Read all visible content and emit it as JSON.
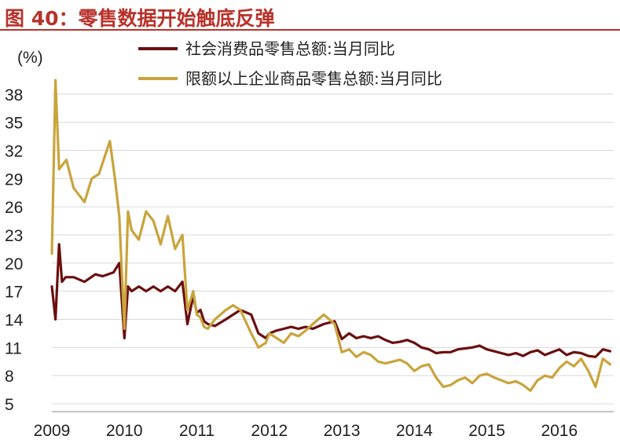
{
  "title": "图 40：零售数据开始触底反弹",
  "colors": {
    "title": "#b8322a",
    "series_retail": "#6b0f0f",
    "series_large": "#c9a43c",
    "grid": "#d8d8d8"
  },
  "chart_data": {
    "type": "line",
    "ylabel": "(%)",
    "ylim": [
      5,
      40
    ],
    "yticks": [
      5,
      8,
      11,
      14,
      17,
      20,
      23,
      26,
      29,
      32,
      35,
      38
    ],
    "xticks": [
      "2009",
      "2010",
      "2011",
      "2012",
      "2013",
      "2014",
      "2015",
      "2016"
    ],
    "xrange": [
      2009.0,
      2016.75
    ],
    "legend_position": "top",
    "grid": "horizontal",
    "series": [
      {
        "name": "社会消费品零售总额:当月同比",
        "color": "#6b0f0f",
        "x": [
          2009.0,
          2009.05,
          2009.1,
          2009.14,
          2009.19,
          2009.3,
          2009.45,
          2009.6,
          2009.7,
          2009.85,
          2009.93,
          2010.0,
          2010.05,
          2010.1,
          2010.2,
          2010.3,
          2010.4,
          2010.5,
          2010.6,
          2010.7,
          2010.8,
          2010.87,
          2010.95,
          2011.0,
          2011.05,
          2011.1,
          2011.15,
          2011.25,
          2011.4,
          2011.5,
          2011.6,
          2011.75,
          2011.85,
          2011.95,
          2012.0,
          2012.1,
          2012.2,
          2012.3,
          2012.4,
          2012.5,
          2012.6,
          2012.75,
          2012.9,
          2013.0,
          2013.1,
          2013.2,
          2013.3,
          2013.4,
          2013.5,
          2013.6,
          2013.7,
          2013.8,
          2013.9,
          2014.0,
          2014.1,
          2014.2,
          2014.3,
          2014.4,
          2014.5,
          2014.6,
          2014.7,
          2014.8,
          2014.9,
          2015.0,
          2015.1,
          2015.2,
          2015.3,
          2015.4,
          2015.5,
          2015.6,
          2015.7,
          2015.8,
          2015.9,
          2016.0,
          2016.1,
          2016.2,
          2016.3,
          2016.4,
          2016.5,
          2016.6,
          2016.7
        ],
        "y": [
          17.5,
          14.0,
          22.0,
          18.0,
          18.5,
          18.5,
          18.0,
          18.8,
          18.6,
          19.0,
          20.0,
          12.0,
          17.5,
          17.0,
          17.5,
          17.0,
          17.5,
          17.0,
          17.5,
          17.0,
          18.0,
          13.5,
          16.5,
          14.7,
          15.0,
          13.8,
          13.5,
          13.3,
          14.0,
          14.5,
          15.0,
          14.5,
          12.5,
          12.0,
          12.5,
          12.8,
          13.0,
          13.2,
          13.0,
          13.2,
          13.0,
          13.5,
          13.8,
          11.9,
          12.5,
          12.0,
          12.2,
          12.0,
          12.2,
          11.8,
          11.5,
          11.6,
          11.8,
          11.5,
          11.0,
          10.8,
          10.4,
          10.5,
          10.5,
          10.8,
          10.9,
          11.0,
          11.2,
          10.8,
          10.6,
          10.4,
          10.2,
          10.4,
          10.1,
          10.5,
          10.7,
          10.2,
          10.5,
          10.8,
          10.2,
          10.5,
          10.4,
          10.1,
          10.0,
          10.8,
          10.6
        ]
      },
      {
        "name": "限额以上企业商品零售总额:当月同比",
        "color": "#c9a43c",
        "x": [
          2009.0,
          2009.05,
          2009.1,
          2009.2,
          2009.3,
          2009.45,
          2009.55,
          2009.65,
          2009.8,
          2009.87,
          2009.93,
          2010.0,
          2010.05,
          2010.1,
          2010.2,
          2010.3,
          2010.4,
          2010.5,
          2010.6,
          2010.7,
          2010.8,
          2010.87,
          2010.95,
          2011.0,
          2011.05,
          2011.1,
          2011.15,
          2011.25,
          2011.4,
          2011.5,
          2011.6,
          2011.75,
          2011.85,
          2011.95,
          2012.0,
          2012.1,
          2012.2,
          2012.3,
          2012.4,
          2012.5,
          2012.6,
          2012.75,
          2012.9,
          2013.0,
          2013.1,
          2013.2,
          2013.3,
          2013.4,
          2013.5,
          2013.6,
          2013.7,
          2013.8,
          2013.9,
          2014.0,
          2014.1,
          2014.2,
          2014.3,
          2014.4,
          2014.5,
          2014.6,
          2014.7,
          2014.8,
          2014.9,
          2015.0,
          2015.1,
          2015.2,
          2015.3,
          2015.4,
          2015.5,
          2015.6,
          2015.7,
          2015.8,
          2015.9,
          2016.0,
          2016.1,
          2016.2,
          2016.3,
          2016.4,
          2016.5,
          2016.6,
          2016.7
        ],
        "y": [
          21.0,
          39.5,
          30.0,
          31.0,
          28.0,
          26.5,
          29.0,
          29.5,
          33.0,
          29.0,
          25.0,
          13.0,
          25.5,
          23.5,
          22.5,
          25.5,
          24.5,
          22.0,
          25.0,
          21.5,
          23.0,
          15.0,
          17.0,
          14.5,
          14.2,
          13.2,
          13.0,
          14.0,
          15.0,
          15.5,
          15.0,
          12.5,
          11.0,
          11.5,
          12.5,
          12.0,
          11.5,
          12.5,
          12.2,
          12.8,
          13.5,
          14.5,
          13.5,
          10.5,
          10.8,
          10.0,
          10.5,
          10.2,
          9.5,
          9.3,
          9.5,
          9.7,
          9.3,
          8.5,
          9.0,
          9.2,
          7.8,
          6.8,
          7.0,
          7.5,
          7.8,
          7.2,
          8.0,
          8.2,
          7.8,
          7.5,
          7.2,
          7.4,
          7.0,
          6.4,
          7.5,
          8.0,
          7.8,
          8.8,
          9.5,
          9.0,
          9.8,
          8.5,
          6.8,
          9.8,
          9.2
        ]
      }
    ]
  }
}
